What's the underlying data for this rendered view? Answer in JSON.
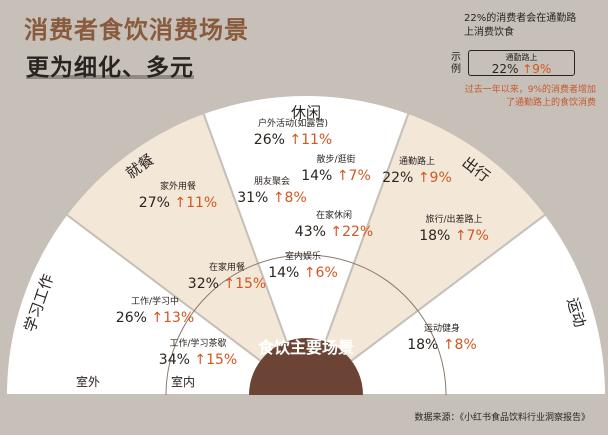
{
  "header": {
    "title_line1": "消费者食饮消费场景",
    "title_line2": "更为细化、多元"
  },
  "legend": {
    "desc": "22%的消费者会在通勤路上消费饮食",
    "example_label": "示例",
    "example_name": "通勤路上",
    "example_pct": "22%",
    "example_change": "9%",
    "note": "过去一年以来，9%的消费者增加了通勤路上的食饮消费"
  },
  "source": "数据来源：《小红书食品饮料行业洞察报告》",
  "colors": {
    "background": "#c6c0b9",
    "sector_light": "#ffffff",
    "sector_beige": "#f3e8d8",
    "center": "#6b4436",
    "accent_up": "#d4561f",
    "title_brown": "#8a5a3c"
  },
  "chart_data": {
    "type": "radial-sector",
    "center_label": "食饮主要场景",
    "inner_ring_labels": {
      "left": "室内",
      "outer_left": "室外"
    },
    "categories": [
      {
        "name": "学习工作",
        "fill": "light"
      },
      {
        "name": "就餐",
        "fill": "beige"
      },
      {
        "name": "休闲",
        "fill": "light"
      },
      {
        "name": "出行",
        "fill": "beige"
      },
      {
        "name": "运动",
        "fill": "light"
      }
    ],
    "items": [
      {
        "category": "学习工作",
        "name": "工作/学习中",
        "pct": "26%",
        "change": "13%",
        "ring": "inner"
      },
      {
        "category": "学习工作",
        "name": "工作/学习茶歇",
        "pct": "34%",
        "change": "15%",
        "ring": "inner"
      },
      {
        "category": "就餐",
        "name": "家外用餐",
        "pct": "27%",
        "change": "11%",
        "ring": "outer"
      },
      {
        "category": "就餐",
        "name": "在家用餐",
        "pct": "32%",
        "change": "15%",
        "ring": "inner"
      },
      {
        "category": "休闲",
        "name": "户外活动(如露营)",
        "pct": "26%",
        "change": "11%",
        "ring": "outer"
      },
      {
        "category": "休闲",
        "name": "朋友聚会",
        "pct": "31%",
        "change": "8%",
        "ring": "outer"
      },
      {
        "category": "休闲",
        "name": "散步/逛街",
        "pct": "14%",
        "change": "7%",
        "ring": "outer"
      },
      {
        "category": "休闲",
        "name": "在家休闲",
        "pct": "43%",
        "change": "22%",
        "ring": "inner"
      },
      {
        "category": "休闲",
        "name": "室内娱乐",
        "pct": "14%",
        "change": "6%",
        "ring": "inner"
      },
      {
        "category": "出行",
        "name": "通勤路上",
        "pct": "22%",
        "change": "9%",
        "ring": "outer"
      },
      {
        "category": "出行",
        "name": "旅行/出差路上",
        "pct": "18%",
        "change": "7%",
        "ring": "outer"
      },
      {
        "category": "运动",
        "name": "运动健身",
        "pct": "18%",
        "change": "8%",
        "ring": "inner"
      }
    ]
  }
}
